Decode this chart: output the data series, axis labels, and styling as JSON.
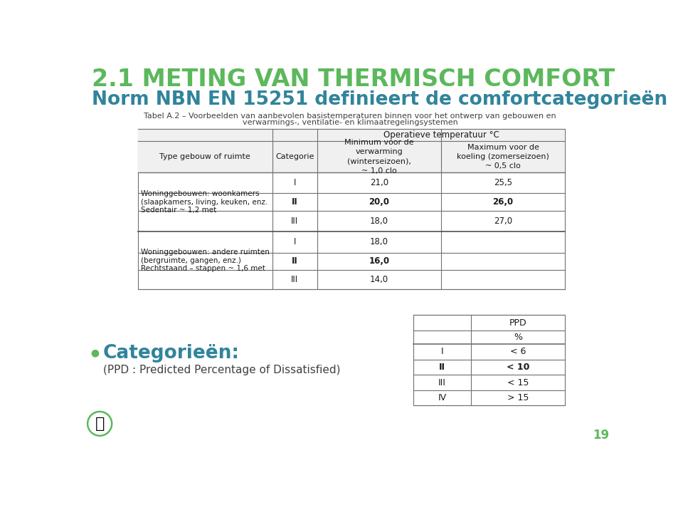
{
  "title1": "2.1 METING VAN THERMISCH COMFORT",
  "title2": "Norm NBN EN 15251 definieert de comfortcategorieën",
  "subtitle_line1": "Tabel A.2 – Voorbeelden van aanbevolen basistemperaturen binnen voor het ontwerp van gebouwen en",
  "subtitle_line2": "verwarmings-, ventilatie- en klimaatregelingsystemen",
  "color_title1": "#5cb85c",
  "color_title2": "#31849b",
  "color_text": "#404040",
  "bg_color": "#ffffff",
  "main_table": {
    "group_header": "Operatieve temperatuur °C",
    "col_headers": [
      "Type gebouw of ruimte",
      "Categorie",
      "Minimum voor de\nverwarming\n(winterseizoen),\n~ 1,0 clo",
      "Maximum voor de\nkoeling (zomerseizoen)\n~ 0,5 clo"
    ],
    "group1_text": "Woninggebouwen: woonkamers\n(slaapkamers, living, keuken, enz.\nSedentair ~ 1,2 met",
    "group2_text": "Woninggebouwen: andere ruimten\n(bergruimte, gangen, enz.)\nRechtstaand – stappen ~ 1,6 met",
    "rows": [
      [
        "I",
        "21,0",
        "25,5",
        false
      ],
      [
        "II",
        "20,0",
        "26,0",
        true
      ],
      [
        "III",
        "18,0",
        "27,0",
        false
      ],
      [
        "I",
        "18,0",
        "",
        false
      ],
      [
        "II",
        "16,0",
        "",
        true
      ],
      [
        "III",
        "14,0",
        "",
        false
      ]
    ]
  },
  "ppd_table": {
    "rows": [
      [
        "I",
        "< 6",
        false
      ],
      [
        "II",
        "< 10",
        true
      ],
      [
        "III",
        "< 15",
        false
      ],
      [
        "IV",
        "> 15",
        false
      ]
    ]
  },
  "bottom_text1": "Categorieën:",
  "bottom_text2": "(PPD : Predicted Percentage of Dissatisfied)",
  "page_number": "19"
}
